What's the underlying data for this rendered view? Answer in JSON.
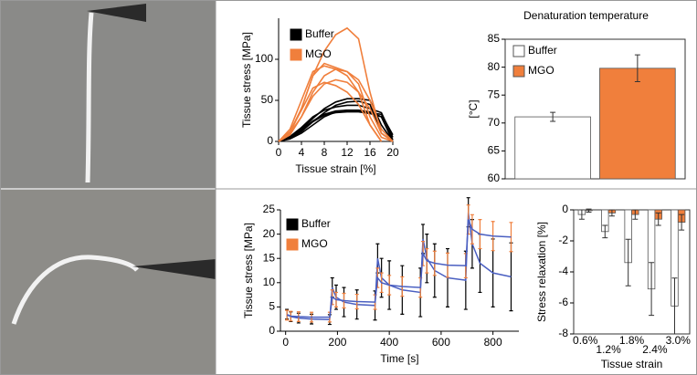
{
  "chart_data": [
    {
      "type": "line",
      "xlabel": "Tissue strain [%]",
      "ylabel": "Tissue stress [MPa]",
      "xlim": [
        0,
        20
      ],
      "xticks": [
        0,
        4,
        8,
        12,
        16,
        20
      ],
      "ylim": [
        0,
        150
      ],
      "yticks": [
        0,
        50,
        100
      ],
      "series": [
        {
          "name": "Buffer",
          "color": "#000000",
          "x": [
            0,
            2,
            4,
            6,
            8,
            10,
            12,
            14,
            16,
            18,
            20
          ],
          "curves": [
            [
              0,
              5,
              15,
              28,
              40,
              48,
              52,
              52,
              50,
              20,
              0
            ],
            [
              0,
              4,
              12,
              24,
              35,
              44,
              48,
              49,
              45,
              10,
              0
            ],
            [
              0,
              6,
              17,
              30,
              38,
              42,
              44,
              44,
              40,
              35,
              5
            ],
            [
              0,
              3,
              10,
              20,
              30,
              36,
              38,
              38,
              36,
              30,
              0
            ],
            [
              0,
              5,
              14,
              25,
              33,
              37,
              38,
              37,
              35,
              33,
              8
            ],
            [
              0,
              4,
              13,
              24,
              32,
              35,
              36,
              36,
              34,
              30,
              2
            ]
          ]
        },
        {
          "name": "MGO",
          "color": "#f07f3c",
          "x": [
            0,
            2,
            4,
            6,
            8,
            10,
            12,
            14,
            16,
            18,
            20
          ],
          "curves": [
            [
              0,
              10,
              40,
              80,
              110,
              130,
              138,
              125,
              60,
              10,
              0
            ],
            [
              0,
              12,
              40,
              80,
              95,
              90,
              85,
              70,
              30,
              5,
              0
            ],
            [
              0,
              15,
              50,
              85,
              92,
              88,
              80,
              60,
              20,
              0,
              null
            ],
            [
              0,
              8,
              30,
              60,
              80,
              88,
              85,
              75,
              50,
              15,
              0
            ],
            [
              0,
              10,
              30,
              55,
              70,
              75,
              72,
              60,
              40,
              10,
              0
            ],
            [
              0,
              12,
              38,
              65,
              72,
              68,
              60,
              45,
              20,
              0,
              null
            ]
          ]
        }
      ]
    },
    {
      "type": "bar",
      "title": "Denaturation temperature",
      "ylabel": "[°C]",
      "ylim": [
        60,
        85
      ],
      "yticks": [
        60,
        65,
        70,
        75,
        80,
        85
      ],
      "series": [
        {
          "name": "Buffer",
          "color": "#ffffff",
          "values": [
            71.1
          ],
          "errors": [
            0.8
          ]
        },
        {
          "name": "MGO",
          "color": "#f07f3c",
          "values": [
            79.8
          ],
          "errors": [
            2.4
          ]
        }
      ]
    },
    {
      "type": "line",
      "xlabel": "Time [s]",
      "ylabel": "Tissue stress [MPa]",
      "xlim": [
        -20,
        900
      ],
      "xticks": [
        0,
        200,
        400,
        600,
        800
      ],
      "ylim": [
        0,
        25
      ],
      "yticks": [
        0,
        5,
        10,
        15,
        20,
        25
      ],
      "x": [
        5,
        20,
        50,
        100,
        170,
        180,
        195,
        225,
        275,
        345,
        355,
        370,
        400,
        450,
        520,
        530,
        545,
        575,
        625,
        695,
        705,
        720,
        750,
        800,
        870
      ],
      "series": [
        {
          "name": "Buffer",
          "color": "#000000",
          "fit_color": "#4a5fc1",
          "values": [
            3.5,
            3,
            2.7,
            2.5,
            2.4,
            9,
            7,
            6,
            5.5,
            5.3,
            15,
            11,
            9.5,
            8.5,
            8,
            19,
            15,
            12.5,
            11,
            10.5,
            24.5,
            18,
            14,
            12,
            11.2
          ],
          "errors": [
            1,
            1,
            1,
            1,
            1,
            2,
            2.5,
            3,
            3,
            3,
            3,
            4,
            5,
            5,
            5,
            3,
            5,
            5.5,
            6,
            6,
            3,
            5,
            6,
            7,
            7
          ]
        },
        {
          "name": "MGO",
          "color": "#f07f3c",
          "fit_color": "#4a5fc1",
          "values": [
            3.3,
            3.1,
            3,
            2.9,
            2.9,
            7,
            6.5,
            6.3,
            6.1,
            6,
            11,
            10,
            9.5,
            9.2,
            9,
            16,
            14.5,
            14,
            13.6,
            13.5,
            23,
            21,
            20,
            19.6,
            19.4
          ],
          "errors": [
            1,
            1,
            1,
            1,
            1,
            1.5,
            1.5,
            1.5,
            1.5,
            1.5,
            2,
            2,
            2,
            2,
            2,
            2.5,
            2.5,
            2.5,
            2.5,
            2.5,
            3,
            3,
            3,
            3,
            3
          ]
        }
      ]
    },
    {
      "type": "bar",
      "xlabel": "Tissue strain",
      "ylabel": "Stress relaxation [%]",
      "categories": [
        "0.6%",
        "1.2%",
        "1.8%",
        "2.4%",
        "3.0%"
      ],
      "ylim": [
        -8,
        0
      ],
      "yticks": [
        -8,
        -6,
        -4,
        -2,
        0
      ],
      "series": [
        {
          "name": "Buffer",
          "color": "#ffffff",
          "values": [
            -0.3,
            -1.4,
            -3.4,
            -5.1,
            -6.2
          ],
          "errors": [
            0.3,
            0.4,
            1.5,
            1.7,
            1.8
          ]
        },
        {
          "name": "MGO",
          "color": "#f07f3c",
          "values": [
            -0.05,
            -0.2,
            -0.3,
            -0.6,
            -0.8
          ],
          "errors": [
            0.1,
            0.2,
            0.3,
            0.4,
            0.5
          ]
        }
      ]
    }
  ]
}
